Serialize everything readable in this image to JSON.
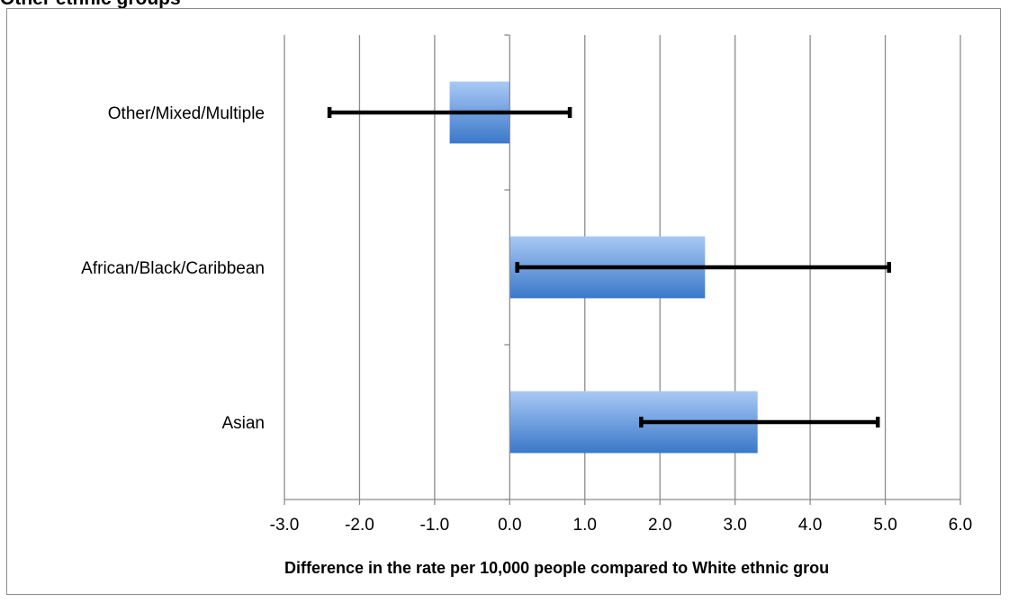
{
  "title": "Other ethnic groups",
  "chart_data": {
    "type": "bar",
    "orientation": "horizontal",
    "categories": [
      "Other/Mixed/Multiple",
      "African/Black/Caribbean",
      "Asian"
    ],
    "values": [
      -0.8,
      2.6,
      3.3
    ],
    "error_low": [
      -2.4,
      0.1,
      1.75
    ],
    "error_high": [
      0.8,
      5.05,
      4.9
    ],
    "xlabel": "Difference in the rate per 10,000 people compared to White ethnic grou",
    "ylabel": "",
    "xlim": [
      -3.0,
      6.0
    ],
    "xticks": [
      "-3.0",
      "-2.0",
      "-1.0",
      "0.0",
      "1.0",
      "2.0",
      "3.0",
      "4.0",
      "5.0",
      "6.0"
    ],
    "grid": "vertical",
    "legend": "none",
    "colors": {
      "bar_top": "#a9c9f5",
      "bar_bottom": "#3a78c9",
      "grid": "#8c8c8c",
      "errorbar": "#000000"
    }
  }
}
